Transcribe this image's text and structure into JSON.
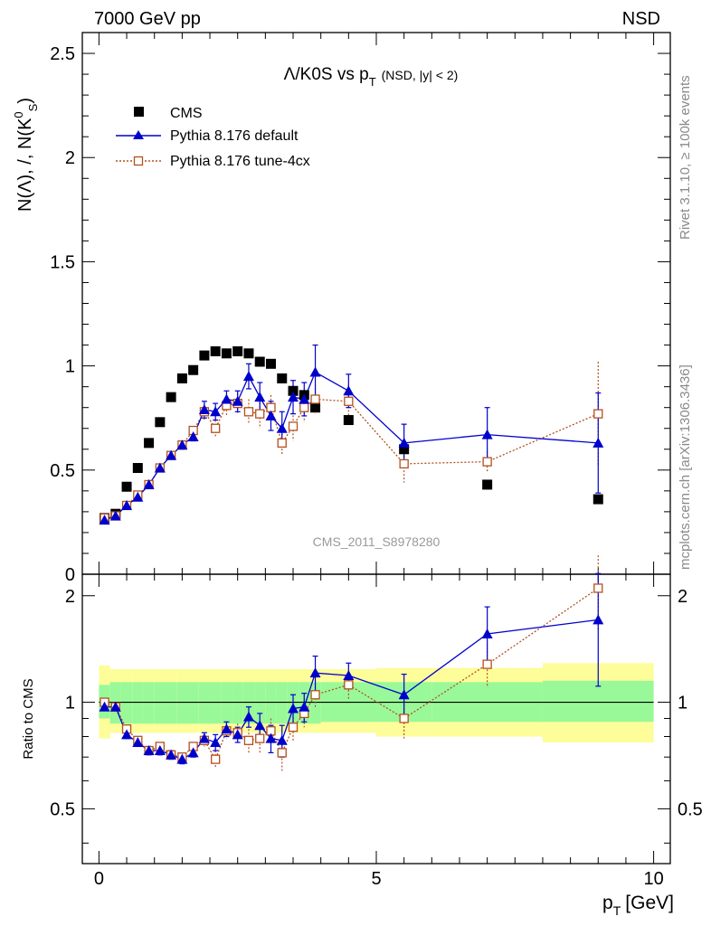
{
  "header": {
    "left": "7000 GeV pp",
    "right": "NSD"
  },
  "side": {
    "rivet": "Rivet 3.1.10, ≥ 100k events",
    "mcplots": "mcplots.cern.ch [arXiv:1306.3436]"
  },
  "watermark": "CMS_2011_S8978280",
  "labels": {
    "title_main": "Λ/K0S vs p",
    "title_sub": "T",
    "title_tail": "(NSD, |y| < 2)",
    "ylabel": "N(Λ), /, N(K",
    "ylabel_sup": "0",
    "ylabel_sub": "S",
    "ylabel_close": ")",
    "ratio_ylabel": "Ratio to CMS",
    "xlabel_p": "p",
    "xlabel_sub": "T",
    "xlabel_unit": "[GeV]"
  },
  "legend": [
    {
      "name": "CMS"
    },
    {
      "name": "Pythia 8.176 default"
    },
    {
      "name": "Pythia 8.176 tune-4cx"
    }
  ],
  "colors": {
    "cms": "#000000",
    "default": "#0000cc",
    "tune": "#b3501e",
    "band_inner": "#99f999",
    "band_outer": "#fdfd99"
  },
  "chart_data": [
    {
      "type": "scatter",
      "title": "Λ/K0S vs pT (NSD, |y| < 2)",
      "xlabel": "pT [GeV]",
      "ylabel": "N(Λ) / N(K0S)",
      "xlim": [
        -0.3,
        10.3
      ],
      "ylim": [
        0,
        2.6
      ],
      "yticks": [
        0,
        0.5,
        1,
        1.5,
        2,
        2.5
      ],
      "ytick_labels": [
        "0",
        "0.5",
        "1",
        "1.5",
        "2",
        "2.5"
      ],
      "xticks": [
        0,
        5,
        10
      ],
      "xtick_labels": [
        "0",
        "5",
        "10"
      ],
      "series": [
        {
          "name": "CMS",
          "x": [
            0.1,
            0.3,
            0.5,
            0.7,
            0.9,
            1.1,
            1.3,
            1.5,
            1.7,
            1.9,
            2.1,
            2.3,
            2.5,
            2.7,
            2.9,
            3.1,
            3.3,
            3.5,
            3.7,
            3.9,
            4.5,
            5.5,
            7.0,
            9.0
          ],
          "y": [
            0.27,
            0.29,
            0.42,
            0.51,
            0.63,
            0.73,
            0.85,
            0.94,
            0.98,
            1.05,
            1.07,
            1.06,
            1.07,
            1.06,
            1.02,
            1.01,
            0.94,
            0.88,
            0.86,
            0.8,
            0.74,
            0.6,
            0.43,
            0.36
          ]
        },
        {
          "name": "Pythia 8.176 default",
          "x": [
            0.1,
            0.3,
            0.5,
            0.7,
            0.9,
            1.1,
            1.3,
            1.5,
            1.7,
            1.9,
            2.1,
            2.3,
            2.5,
            2.7,
            2.9,
            3.1,
            3.3,
            3.5,
            3.7,
            3.9,
            4.5,
            5.5,
            7.0,
            9.0
          ],
          "y": [
            0.26,
            0.28,
            0.33,
            0.37,
            0.43,
            0.51,
            0.57,
            0.62,
            0.66,
            0.79,
            0.78,
            0.84,
            0.83,
            0.95,
            0.85,
            0.76,
            0.7,
            0.85,
            0.84,
            0.97,
            0.88,
            0.63,
            0.67,
            0.63
          ],
          "err": [
            0.01,
            0.01,
            0.01,
            0.01,
            0.01,
            0.01,
            0.01,
            0.02,
            0.02,
            0.04,
            0.04,
            0.04,
            0.05,
            0.06,
            0.07,
            0.07,
            0.08,
            0.08,
            0.08,
            0.13,
            0.08,
            0.09,
            0.13,
            0.24
          ]
        },
        {
          "name": "Pythia 8.176 tune-4cx",
          "x": [
            0.1,
            0.3,
            0.5,
            0.7,
            0.9,
            1.1,
            1.3,
            1.5,
            1.7,
            1.9,
            2.1,
            2.3,
            2.5,
            2.7,
            2.9,
            3.1,
            3.3,
            3.5,
            3.7,
            3.9,
            4.5,
            5.5,
            7.0,
            9.0
          ],
          "y": [
            0.27,
            0.28,
            0.33,
            0.38,
            0.43,
            0.51,
            0.57,
            0.62,
            0.69,
            0.78,
            0.7,
            0.81,
            0.82,
            0.78,
            0.77,
            0.8,
            0.63,
            0.71,
            0.8,
            0.84,
            0.83,
            0.53,
            0.54,
            0.77
          ],
          "err": [
            0.01,
            0.01,
            0.01,
            0.01,
            0.01,
            0.01,
            0.01,
            0.02,
            0.02,
            0.04,
            0.04,
            0.05,
            0.05,
            0.06,
            0.07,
            0.06,
            0.06,
            0.07,
            0.07,
            0.07,
            0.08,
            0.09,
            0.05,
            0.25
          ]
        }
      ]
    },
    {
      "type": "line",
      "title": "Ratio to CMS",
      "ylabel": "Ratio to CMS",
      "xlim": [
        -0.3,
        10.3
      ],
      "ylim": [
        0.35,
        2.3
      ],
      "yscale": "log",
      "yticks": [
        0.5,
        1,
        2
      ],
      "ytick_labels": [
        "0.5",
        "1",
        "2"
      ],
      "bands": {
        "x_edges": [
          0.0,
          0.2,
          0.4,
          0.6,
          0.8,
          1.0,
          1.2,
          1.4,
          1.6,
          1.8,
          2.0,
          2.2,
          2.4,
          2.6,
          2.8,
          3.0,
          3.2,
          3.4,
          3.6,
          3.8,
          4.0,
          5.0,
          6.0,
          8.0,
          10.0
        ],
        "inner_lo": [
          0.9,
          0.87,
          0.87,
          0.87,
          0.87,
          0.87,
          0.87,
          0.87,
          0.87,
          0.87,
          0.87,
          0.87,
          0.87,
          0.87,
          0.87,
          0.87,
          0.87,
          0.87,
          0.87,
          0.87,
          0.88,
          0.88,
          0.88,
          0.88
        ],
        "inner_hi": [
          1.12,
          1.14,
          1.14,
          1.14,
          1.14,
          1.14,
          1.14,
          1.14,
          1.14,
          1.14,
          1.14,
          1.14,
          1.14,
          1.14,
          1.14,
          1.14,
          1.14,
          1.14,
          1.14,
          1.14,
          1.14,
          1.14,
          1.14,
          1.15
        ],
        "outer_lo": [
          0.79,
          0.82,
          0.82,
          0.82,
          0.82,
          0.82,
          0.82,
          0.82,
          0.82,
          0.82,
          0.82,
          0.82,
          0.82,
          0.82,
          0.82,
          0.82,
          0.82,
          0.82,
          0.82,
          0.82,
          0.82,
          0.8,
          0.8,
          0.77
        ],
        "outer_hi": [
          1.27,
          1.24,
          1.24,
          1.24,
          1.24,
          1.24,
          1.24,
          1.24,
          1.24,
          1.24,
          1.24,
          1.24,
          1.24,
          1.24,
          1.24,
          1.24,
          1.24,
          1.24,
          1.24,
          1.24,
          1.24,
          1.25,
          1.25,
          1.29
        ]
      },
      "series": [
        {
          "name": "Pythia 8.176 default",
          "x": [
            0.1,
            0.3,
            0.5,
            0.7,
            0.9,
            1.1,
            1.3,
            1.5,
            1.7,
            1.9,
            2.1,
            2.3,
            2.5,
            2.7,
            2.9,
            3.1,
            3.3,
            3.5,
            3.7,
            3.9,
            4.5,
            5.5,
            7.0,
            9.0
          ],
          "y": [
            0.97,
            0.97,
            0.81,
            0.77,
            0.73,
            0.73,
            0.71,
            0.69,
            0.72,
            0.79,
            0.77,
            0.84,
            0.81,
            0.91,
            0.86,
            0.79,
            0.78,
            0.96,
            0.97,
            1.21,
            1.19,
            1.05,
            1.56,
            1.71
          ],
          "err": [
            0.02,
            0.02,
            0.02,
            0.02,
            0.02,
            0.02,
            0.02,
            0.02,
            0.02,
            0.03,
            0.04,
            0.04,
            0.04,
            0.06,
            0.07,
            0.07,
            0.08,
            0.09,
            0.09,
            0.14,
            0.1,
            0.15,
            0.3,
            0.6
          ]
        },
        {
          "name": "Pythia 8.176 tune-4cx",
          "x": [
            0.1,
            0.3,
            0.5,
            0.7,
            0.9,
            1.1,
            1.3,
            1.5,
            1.7,
            1.9,
            2.1,
            2.3,
            2.5,
            2.7,
            2.9,
            3.1,
            3.3,
            3.5,
            3.7,
            3.9,
            4.5,
            5.5,
            7.0,
            9.0
          ],
          "y": [
            1.0,
            0.97,
            0.84,
            0.78,
            0.73,
            0.75,
            0.71,
            0.7,
            0.75,
            0.78,
            0.69,
            0.83,
            0.82,
            0.78,
            0.79,
            0.83,
            0.72,
            0.85,
            0.93,
            1.05,
            1.12,
            0.9,
            1.28,
            2.1
          ],
          "err": [
            0.02,
            0.02,
            0.02,
            0.02,
            0.02,
            0.02,
            0.02,
            0.02,
            0.02,
            0.03,
            0.04,
            0.04,
            0.05,
            0.06,
            0.07,
            0.07,
            0.08,
            0.08,
            0.08,
            0.08,
            0.1,
            0.11,
            0.18,
            0.5
          ]
        }
      ]
    }
  ]
}
